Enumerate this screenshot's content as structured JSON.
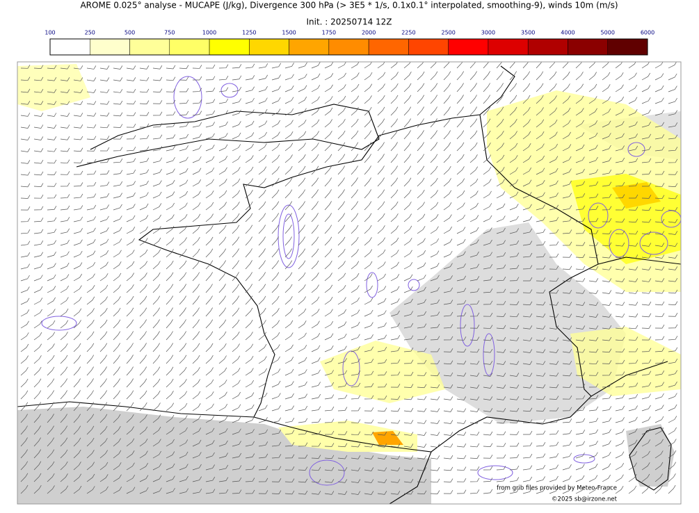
{
  "header": {
    "title": "AROME 0.025° analyse - MUCAPE (J/kg), Divergence 300 hPa (> 3E5 * 1/s, 0.1x0.1° interpolated, smoothing-9), winds 10m (m/s)",
    "init": "Init. : 20250714 12Z"
  },
  "colorbar": {
    "ticks": [
      100,
      250,
      500,
      750,
      1000,
      1250,
      1500,
      1750,
      2000,
      2250,
      2500,
      3000,
      3500,
      4000,
      5000,
      6000
    ],
    "colors": [
      "#ffffff",
      "#ffffcc",
      "#ffff99",
      "#ffff66",
      "#ffff00",
      "#ffd700",
      "#ffa500",
      "#ff8c00",
      "#ff6600",
      "#ff4500",
      "#ff0000",
      "#dd0000",
      "#b00000",
      "#8b0000",
      "#600000"
    ]
  },
  "credits": {
    "source": "from grib files provided by Meteo-France",
    "copyright": "©2025 sb@irzone.net"
  }
}
